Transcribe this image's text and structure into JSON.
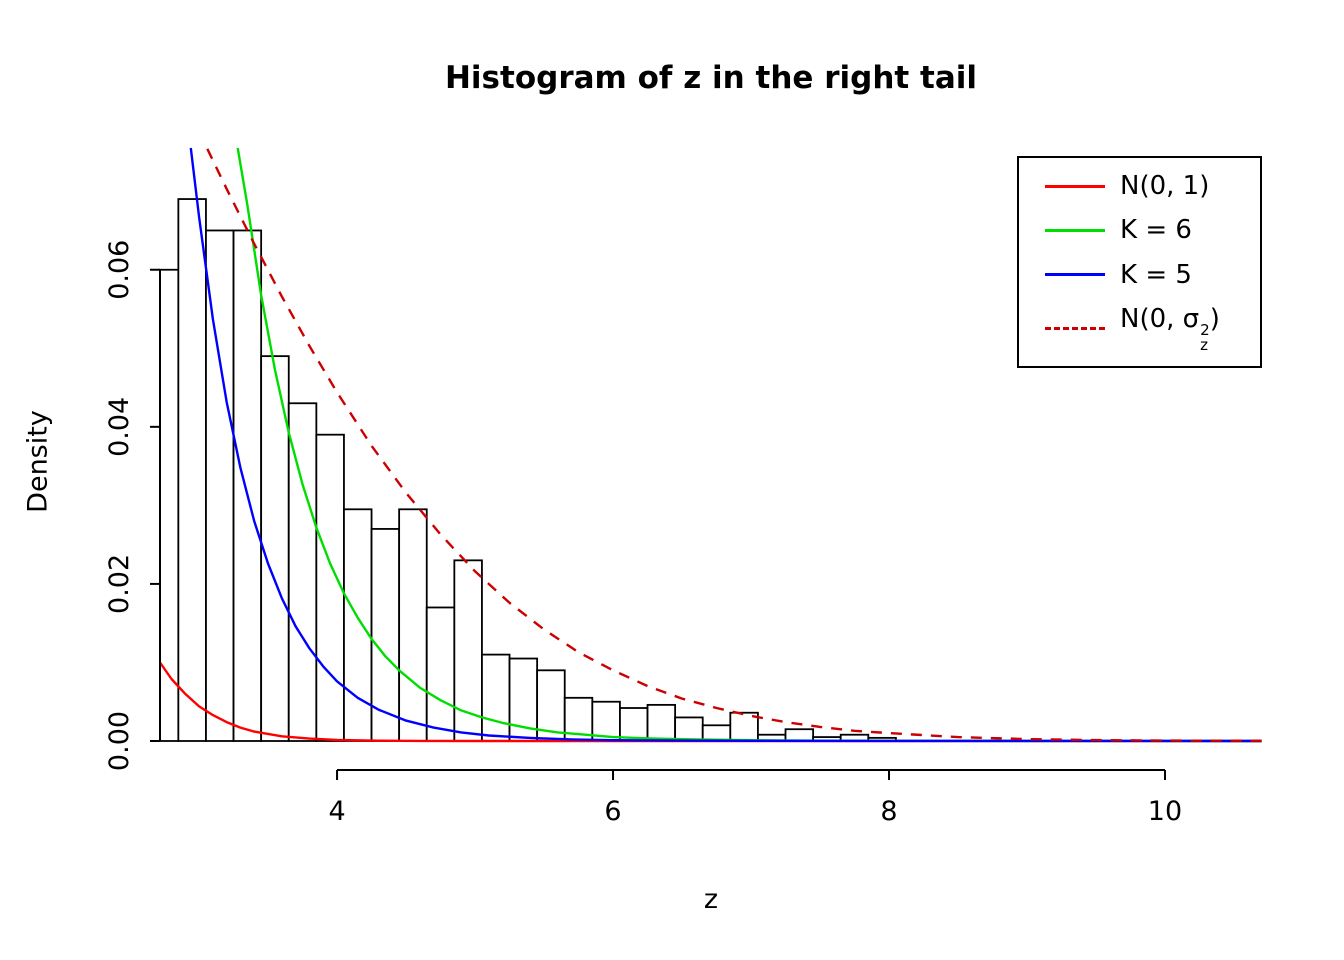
{
  "chart_data": {
    "type": "bar",
    "subtype": "histogram-with-density-curves",
    "title": "Histogram of z in the right tail",
    "xlabel": "z",
    "ylabel": "Density",
    "xlim": [
      2.717,
      10.703
    ],
    "ylim": [
      0,
      0.0755
    ],
    "x_ticks": [
      4,
      6,
      8,
      10
    ],
    "x_tick_labels": [
      "4",
      "6",
      "8",
      "10"
    ],
    "y_ticks": [
      0,
      0.02,
      0.04,
      0.06
    ],
    "y_tick_labels": [
      "0.00",
      "0.02",
      "0.04",
      "0.06"
    ],
    "grid": "off",
    "background": "#ffffff",
    "histogram": {
      "bin_start": 2.65,
      "bin_width": 0.2,
      "bar_fill": "#ffffff",
      "bar_stroke": "#000000",
      "densities": [
        0.06,
        0.069,
        0.065,
        0.065,
        0.049,
        0.043,
        0.039,
        0.0295,
        0.027,
        0.0295,
        0.017,
        0.023,
        0.011,
        0.0105,
        0.009,
        0.0055,
        0.005,
        0.0042,
        0.0046,
        0.003,
        0.002,
        0.0036,
        0.0008,
        0.0015,
        0.0005,
        0.0008,
        0.0004
      ]
    },
    "curves": [
      {
        "key": "n01",
        "name": "N(0, 1)",
        "color": "#ff0000",
        "dashed": false,
        "points": [
          [
            2.717,
            0.01
          ],
          [
            2.8,
            0.0079
          ],
          [
            2.9,
            0.006
          ],
          [
            3.0,
            0.0044
          ],
          [
            3.1,
            0.0033
          ],
          [
            3.2,
            0.0024
          ],
          [
            3.3,
            0.0017
          ],
          [
            3.4,
            0.0012
          ],
          [
            3.5,
            0.0009
          ],
          [
            3.6,
            0.0006
          ],
          [
            3.8,
            0.0003
          ],
          [
            4.0,
            0.00013
          ],
          [
            4.3,
            4e-05
          ],
          [
            4.6,
            1e-05
          ],
          [
            5.0,
            0
          ],
          [
            10.7,
            0
          ]
        ]
      },
      {
        "key": "k6",
        "name": "K = 6",
        "color": "#00dd00",
        "dashed": false,
        "points": [
          [
            3.28,
            0.0755
          ],
          [
            3.35,
            0.0683
          ],
          [
            3.45,
            0.0568
          ],
          [
            3.55,
            0.0473
          ],
          [
            3.65,
            0.0393
          ],
          [
            3.75,
            0.0327
          ],
          [
            3.85,
            0.0272
          ],
          [
            3.95,
            0.0226
          ],
          [
            4.05,
            0.0188
          ],
          [
            4.15,
            0.0157
          ],
          [
            4.25,
            0.013
          ],
          [
            4.35,
            0.0108
          ],
          [
            4.45,
            0.009
          ],
          [
            4.6,
            0.0068
          ],
          [
            4.75,
            0.0052
          ],
          [
            4.9,
            0.0039
          ],
          [
            5.05,
            0.003
          ],
          [
            5.2,
            0.0023
          ],
          [
            5.4,
            0.0016
          ],
          [
            5.6,
            0.0011
          ],
          [
            5.8,
            0.0008
          ],
          [
            6.0,
            0.0005
          ],
          [
            6.3,
            0.0003
          ],
          [
            6.6,
            0.0002
          ],
          [
            7.0,
            0.0001
          ],
          [
            7.5,
            4e-05
          ],
          [
            8.0,
            2e-05
          ],
          [
            10.7,
            0
          ]
        ]
      },
      {
        "key": "k5",
        "name": "K = 5",
        "color": "#0000ff",
        "dashed": false,
        "points": [
          [
            2.94,
            0.0755
          ],
          [
            3.0,
            0.0667
          ],
          [
            3.1,
            0.0537
          ],
          [
            3.2,
            0.0432
          ],
          [
            3.3,
            0.0348
          ],
          [
            3.4,
            0.028
          ],
          [
            3.5,
            0.0226
          ],
          [
            3.6,
            0.0182
          ],
          [
            3.7,
            0.0146
          ],
          [
            3.8,
            0.0118
          ],
          [
            3.9,
            0.0095
          ],
          [
            4.0,
            0.0076
          ],
          [
            4.15,
            0.0055
          ],
          [
            4.3,
            0.004
          ],
          [
            4.5,
            0.0026
          ],
          [
            4.7,
            0.0017
          ],
          [
            4.9,
            0.0011
          ],
          [
            5.1,
            0.0007
          ],
          [
            5.4,
            0.0004
          ],
          [
            5.7,
            0.0002
          ],
          [
            6.0,
            0.0001
          ],
          [
            6.5,
            5e-05
          ],
          [
            7.0,
            2e-05
          ],
          [
            8.0,
            1e-05
          ],
          [
            10.7,
            0
          ]
        ]
      },
      {
        "key": "n0sigma",
        "name": "N(0, sigma_z^2)",
        "color": "#cc0000",
        "dashed": true,
        "points": [
          [
            3.06,
            0.0754
          ],
          [
            3.2,
            0.0703
          ],
          [
            3.4,
            0.0633
          ],
          [
            3.6,
            0.0566
          ],
          [
            3.8,
            0.0503
          ],
          [
            4.0,
            0.0444
          ],
          [
            4.25,
            0.0376
          ],
          [
            4.5,
            0.0316
          ],
          [
            4.75,
            0.0263
          ],
          [
            5.0,
            0.0216
          ],
          [
            5.25,
            0.0176
          ],
          [
            5.5,
            0.0142
          ],
          [
            5.75,
            0.0113
          ],
          [
            6.0,
            0.009
          ],
          [
            6.25,
            0.007
          ],
          [
            6.5,
            0.0054
          ],
          [
            6.75,
            0.0042
          ],
          [
            7.0,
            0.0032
          ],
          [
            7.25,
            0.0024
          ],
          [
            7.5,
            0.0018
          ],
          [
            7.75,
            0.0013
          ],
          [
            8.0,
            0.001
          ],
          [
            8.5,
            0.0005
          ],
          [
            9.0,
            0.00024
          ],
          [
            9.5,
            0.00012
          ],
          [
            10.0,
            5e-05
          ],
          [
            10.7,
            2e-05
          ]
        ]
      }
    ],
    "legend": {
      "position": "top-right",
      "entries": [
        {
          "key": "n01",
          "label": "N(0, 1)",
          "color": "#ff0000",
          "dashed": false
        },
        {
          "key": "k6",
          "label": "K = 6",
          "color": "#00dd00",
          "dashed": false
        },
        {
          "key": "k5",
          "label": "K = 5",
          "color": "#0000ff",
          "dashed": false
        },
        {
          "key": "n0sigma",
          "label_parts": {
            "prefix": "N(0, ",
            "symbol": "σ",
            "sup": "2",
            "sub": "z",
            "suffix": ")"
          },
          "color": "#cc0000",
          "dashed": true
        }
      ]
    }
  }
}
